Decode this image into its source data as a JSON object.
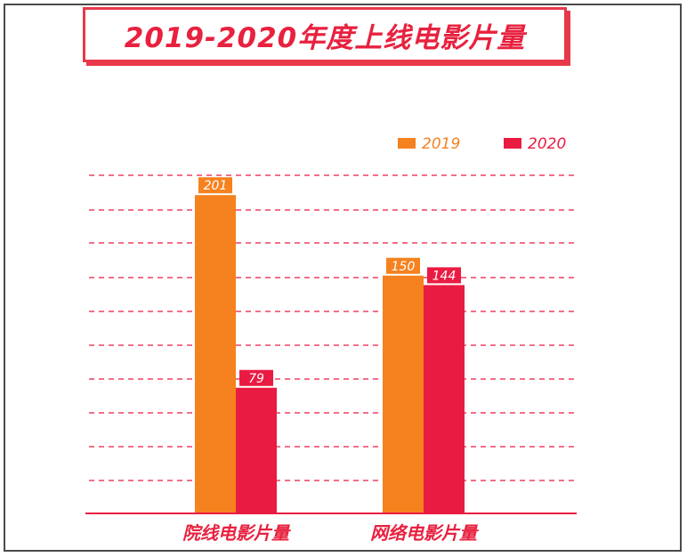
{
  "chart_data": {
    "type": "bar",
    "title": "2019-2020年度上线电影片量",
    "categories": [
      "院线电影片量",
      "网络电影片量"
    ],
    "series": [
      {
        "name": "2019",
        "values": [
          201,
          150
        ],
        "color": "#f5821f"
      },
      {
        "name": "2020",
        "values": [
          79,
          144
        ],
        "color": "#ea1b42"
      }
    ],
    "ylim": [
      0,
      210
    ],
    "grid": true,
    "legend": "top-right",
    "xlabel": "",
    "ylabel": ""
  },
  "colors": {
    "accent": "#e8213f",
    "grid": "#ea1b42",
    "axis": "#ea1b42"
  }
}
